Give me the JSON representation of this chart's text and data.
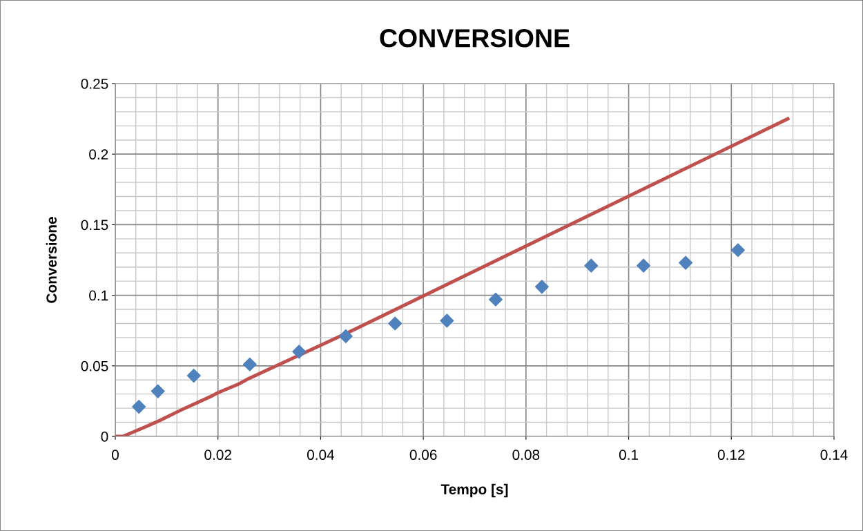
{
  "chart_data": {
    "type": "scatter",
    "title": "CONVERSIONE",
    "xlabel": "Tempo [s]",
    "ylabel": "Conversione",
    "xlim": [
      0,
      0.14
    ],
    "xticks": [
      0,
      0.02,
      0.04,
      0.06,
      0.08,
      0.1,
      0.12,
      0.14
    ],
    "ylim": [
      0,
      0.25
    ],
    "yticks": [
      0,
      0.05,
      0.1,
      0.15,
      0.2,
      0.25
    ],
    "grid": true,
    "legend": false,
    "series": [
      {
        "marker": "diamond",
        "color": "#4f81bd",
        "x": [
          0.0046,
          0.0083,
          0.0153,
          0.0262,
          0.0358,
          0.0449,
          0.0545,
          0.0646,
          0.0741,
          0.0831,
          0.0927,
          0.1029,
          0.1111,
          0.1213
        ],
        "values": [
          0.021,
          0.032,
          0.043,
          0.051,
          0.06,
          0.071,
          0.08,
          0.082,
          0.097,
          0.106,
          0.121,
          0.121,
          0.123,
          0.132
        ]
      },
      {
        "type": "line",
        "marker": "none",
        "color": "#c0504d",
        "x": [
          0,
          0.0015,
          0.006,
          0.0085,
          0.013,
          0.016,
          0.019,
          0.02,
          0.024,
          0.026,
          0.045,
          0.131
        ],
        "values": [
          0,
          0,
          0.007,
          0.011,
          0.019,
          0.024,
          0.029,
          0.031,
          0.037,
          0.041,
          0.073,
          0.225
        ]
      }
    ]
  }
}
